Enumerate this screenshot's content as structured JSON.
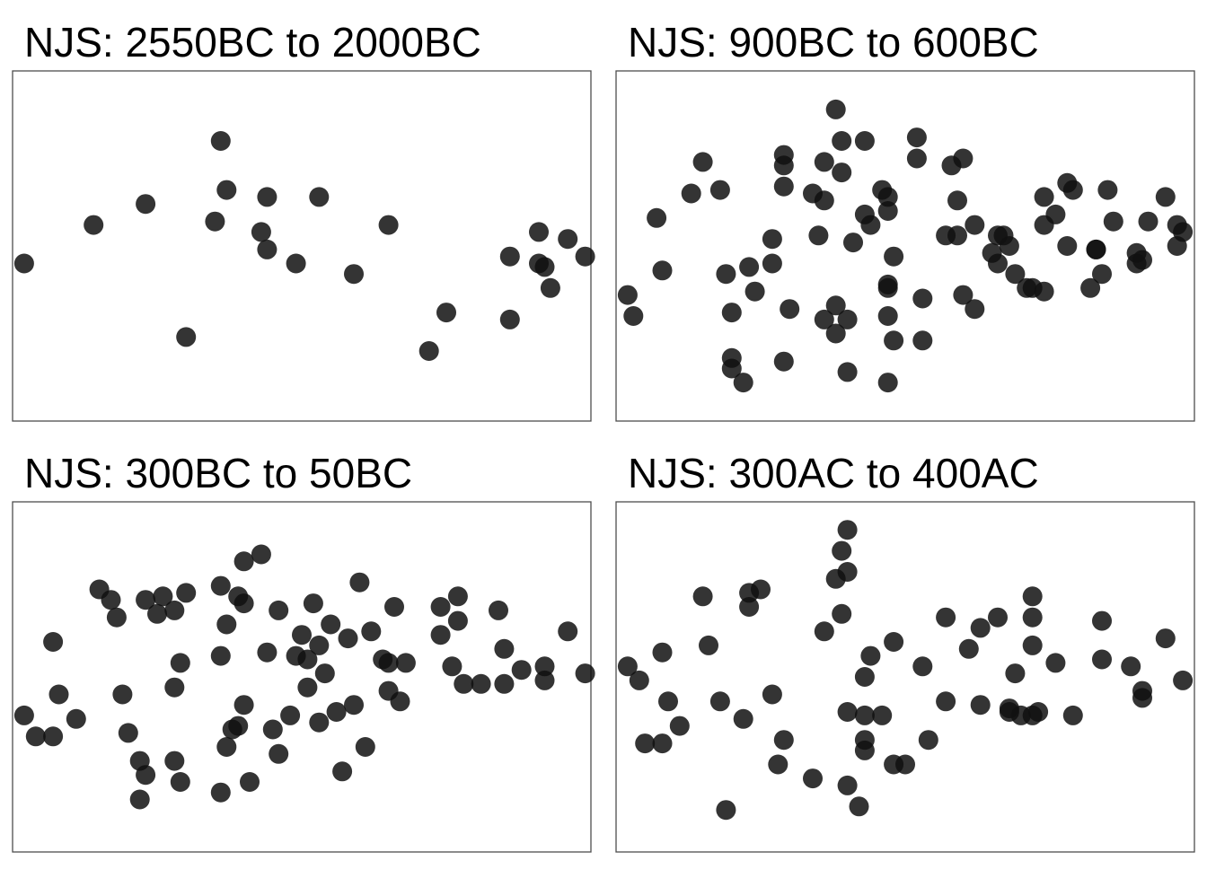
{
  "colors": {
    "point": "#111111",
    "frame": "#4d4d4d",
    "background": "#ffffff"
  },
  "chart_data": [
    {
      "type": "scatter",
      "title": "NJS: 2550BC to 2000BC",
      "xlabel": "",
      "ylabel": "",
      "xlim": [
        0,
        100
      ],
      "ylim": [
        0,
        100
      ],
      "grid": false,
      "points": [
        [
          2,
          45
        ],
        [
          14,
          56
        ],
        [
          23,
          62
        ],
        [
          36,
          80
        ],
        [
          35,
          57
        ],
        [
          37,
          66
        ],
        [
          44,
          64
        ],
        [
          43,
          54
        ],
        [
          44,
          49
        ],
        [
          49,
          45
        ],
        [
          53,
          64
        ],
        [
          59,
          42
        ],
        [
          65,
          56
        ],
        [
          30,
          24
        ],
        [
          75,
          31
        ],
        [
          72,
          20
        ],
        [
          86,
          47
        ],
        [
          91,
          54
        ],
        [
          91,
          45
        ],
        [
          92,
          44
        ],
        [
          96,
          52
        ],
        [
          99,
          47
        ],
        [
          93,
          38
        ],
        [
          86,
          29
        ]
      ]
    },
    {
      "type": "scatter",
      "title": "NJS: 900BC to 600BC",
      "xlabel": "",
      "ylabel": "",
      "xlim": [
        0,
        100
      ],
      "ylim": [
        0,
        100
      ],
      "grid": false,
      "points": [
        [
          2,
          36
        ],
        [
          3,
          30
        ],
        [
          7,
          58
        ],
        [
          8,
          43
        ],
        [
          13,
          65
        ],
        [
          15,
          74
        ],
        [
          18,
          66
        ],
        [
          19,
          42
        ],
        [
          20,
          18
        ],
        [
          20,
          15
        ],
        [
          22,
          11
        ],
        [
          20,
          31
        ],
        [
          23,
          44
        ],
        [
          24,
          37
        ],
        [
          27,
          45
        ],
        [
          27,
          52
        ],
        [
          29,
          67
        ],
        [
          29,
          73
        ],
        [
          29,
          76
        ],
        [
          30,
          32
        ],
        [
          29,
          17
        ],
        [
          34,
          65
        ],
        [
          35,
          53
        ],
        [
          36,
          63
        ],
        [
          36,
          74
        ],
        [
          38,
          89
        ],
        [
          39,
          80
        ],
        [
          36,
          29
        ],
        [
          38,
          33
        ],
        [
          38,
          25
        ],
        [
          39,
          71
        ],
        [
          40,
          14
        ],
        [
          40,
          29
        ],
        [
          41,
          51
        ],
        [
          43,
          59
        ],
        [
          44,
          56
        ],
        [
          43,
          80
        ],
        [
          46,
          66
        ],
        [
          47,
          64
        ],
        [
          47,
          60
        ],
        [
          47,
          39
        ],
        [
          47,
          11
        ],
        [
          47,
          30
        ],
        [
          47,
          38
        ],
        [
          48,
          47
        ],
        [
          48,
          23
        ],
        [
          52,
          81
        ],
        [
          52,
          75
        ],
        [
          53,
          23
        ],
        [
          53,
          35
        ],
        [
          57,
          53
        ],
        [
          58,
          73
        ],
        [
          59,
          63
        ],
        [
          62,
          56
        ],
        [
          60,
          75
        ],
        [
          59,
          53
        ],
        [
          60,
          36
        ],
        [
          62,
          32
        ],
        [
          66,
          45
        ],
        [
          65,
          48
        ],
        [
          66,
          53
        ],
        [
          67,
          53
        ],
        [
          69,
          42
        ],
        [
          68,
          50
        ],
        [
          71,
          38
        ],
        [
          72,
          38
        ],
        [
          74,
          37
        ],
        [
          74,
          56
        ],
        [
          76,
          59
        ],
        [
          74,
          64
        ],
        [
          78,
          68
        ],
        [
          79,
          66
        ],
        [
          78,
          50
        ],
        [
          82,
          38
        ],
        [
          83,
          49
        ],
        [
          85,
          66
        ],
        [
          84,
          42
        ],
        [
          83,
          49
        ],
        [
          86,
          57
        ],
        [
          90,
          48
        ],
        [
          92,
          57
        ],
        [
          90,
          45
        ],
        [
          91,
          46
        ],
        [
          95,
          64
        ],
        [
          97,
          50
        ],
        [
          98,
          54
        ],
        [
          97,
          56
        ]
      ]
    },
    {
      "type": "scatter",
      "title": "NJS: 300BC to 50BC",
      "xlabel": "",
      "ylabel": "",
      "xlim": [
        0,
        100
      ],
      "ylim": [
        0,
        100
      ],
      "grid": false,
      "points": [
        [
          2,
          39
        ],
        [
          4,
          33
        ],
        [
          7,
          60
        ],
        [
          8,
          45
        ],
        [
          7,
          33
        ],
        [
          11,
          38
        ],
        [
          15,
          75
        ],
        [
          17,
          72
        ],
        [
          18,
          67
        ],
        [
          19,
          45
        ],
        [
          20,
          34
        ],
        [
          22,
          26
        ],
        [
          23,
          22
        ],
        [
          22,
          15
        ],
        [
          23,
          72
        ],
        [
          25,
          68
        ],
        [
          26,
          73
        ],
        [
          28,
          69
        ],
        [
          30,
          74
        ],
        [
          28,
          47
        ],
        [
          29,
          54
        ],
        [
          29,
          20
        ],
        [
          28,
          26
        ],
        [
          36,
          76
        ],
        [
          36,
          56
        ],
        [
          37,
          65
        ],
        [
          40,
          83
        ],
        [
          39,
          73
        ],
        [
          40,
          71
        ],
        [
          40,
          42
        ],
        [
          39,
          36
        ],
        [
          38,
          35
        ],
        [
          36,
          17
        ],
        [
          37,
          30
        ],
        [
          41,
          20
        ],
        [
          43,
          85
        ],
        [
          44,
          57
        ],
        [
          45,
          35
        ],
        [
          46,
          69
        ],
        [
          46,
          28
        ],
        [
          48,
          39
        ],
        [
          49,
          56
        ],
        [
          50,
          62
        ],
        [
          51,
          47
        ],
        [
          51,
          55
        ],
        [
          52,
          71
        ],
        [
          53,
          37
        ],
        [
          54,
          51
        ],
        [
          53,
          59
        ],
        [
          55,
          65
        ],
        [
          56,
          40
        ],
        [
          57,
          23
        ],
        [
          58,
          61
        ],
        [
          59,
          42
        ],
        [
          60,
          77
        ],
        [
          61,
          30
        ],
        [
          62,
          63
        ],
        [
          64,
          55
        ],
        [
          65,
          54
        ],
        [
          65,
          46
        ],
        [
          66,
          70
        ],
        [
          67,
          43
        ],
        [
          68,
          54
        ],
        [
          74,
          62
        ],
        [
          74,
          70
        ],
        [
          76,
          53
        ],
        [
          77,
          73
        ],
        [
          77,
          66
        ],
        [
          78,
          48
        ],
        [
          81,
          48
        ],
        [
          84,
          69
        ],
        [
          85,
          58
        ],
        [
          85,
          48
        ],
        [
          88,
          52
        ],
        [
          92,
          49
        ],
        [
          92,
          53
        ],
        [
          96,
          63
        ],
        [
          99,
          51
        ]
      ]
    },
    {
      "type": "scatter",
      "title": "NJS: 300AC to 400AC",
      "xlabel": "",
      "ylabel": "",
      "xlim": [
        0,
        100
      ],
      "ylim": [
        0,
        100
      ],
      "grid": false,
      "points": [
        [
          2,
          53
        ],
        [
          4,
          49
        ],
        [
          5,
          31
        ],
        [
          8,
          57
        ],
        [
          8,
          31
        ],
        [
          9,
          43
        ],
        [
          11,
          36
        ],
        [
          15,
          73
        ],
        [
          16,
          59
        ],
        [
          18,
          43
        ],
        [
          19,
          12
        ],
        [
          22,
          38
        ],
        [
          23,
          70
        ],
        [
          23,
          74
        ],
        [
          25,
          75
        ],
        [
          27,
          45
        ],
        [
          29,
          32
        ],
        [
          28,
          25
        ],
        [
          34,
          21
        ],
        [
          36,
          63
        ],
        [
          38,
          78
        ],
        [
          39,
          68
        ],
        [
          39,
          86
        ],
        [
          40,
          80
        ],
        [
          40,
          92
        ],
        [
          40,
          40
        ],
        [
          40,
          19
        ],
        [
          42,
          13
        ],
        [
          43,
          50
        ],
        [
          43,
          39
        ],
        [
          43,
          32
        ],
        [
          43,
          29
        ],
        [
          44,
          56
        ],
        [
          46,
          39
        ],
        [
          48,
          25
        ],
        [
          48,
          60
        ],
        [
          50,
          25
        ],
        [
          53,
          53
        ],
        [
          54,
          32
        ],
        [
          57,
          67
        ],
        [
          57,
          43
        ],
        [
          61,
          58
        ],
        [
          63,
          42
        ],
        [
          63,
          64
        ],
        [
          66,
          67
        ],
        [
          68,
          40
        ],
        [
          68,
          41
        ],
        [
          69,
          51
        ],
        [
          70,
          39
        ],
        [
          72,
          39
        ],
        [
          72,
          59
        ],
        [
          72,
          73
        ],
        [
          72,
          67
        ],
        [
          73,
          40
        ],
        [
          76,
          54
        ],
        [
          79,
          39
        ],
        [
          84,
          55
        ],
        [
          84,
          66
        ],
        [
          89,
          53
        ],
        [
          91,
          46
        ],
        [
          91,
          44
        ],
        [
          95,
          61
        ],
        [
          98,
          49
        ]
      ]
    }
  ]
}
